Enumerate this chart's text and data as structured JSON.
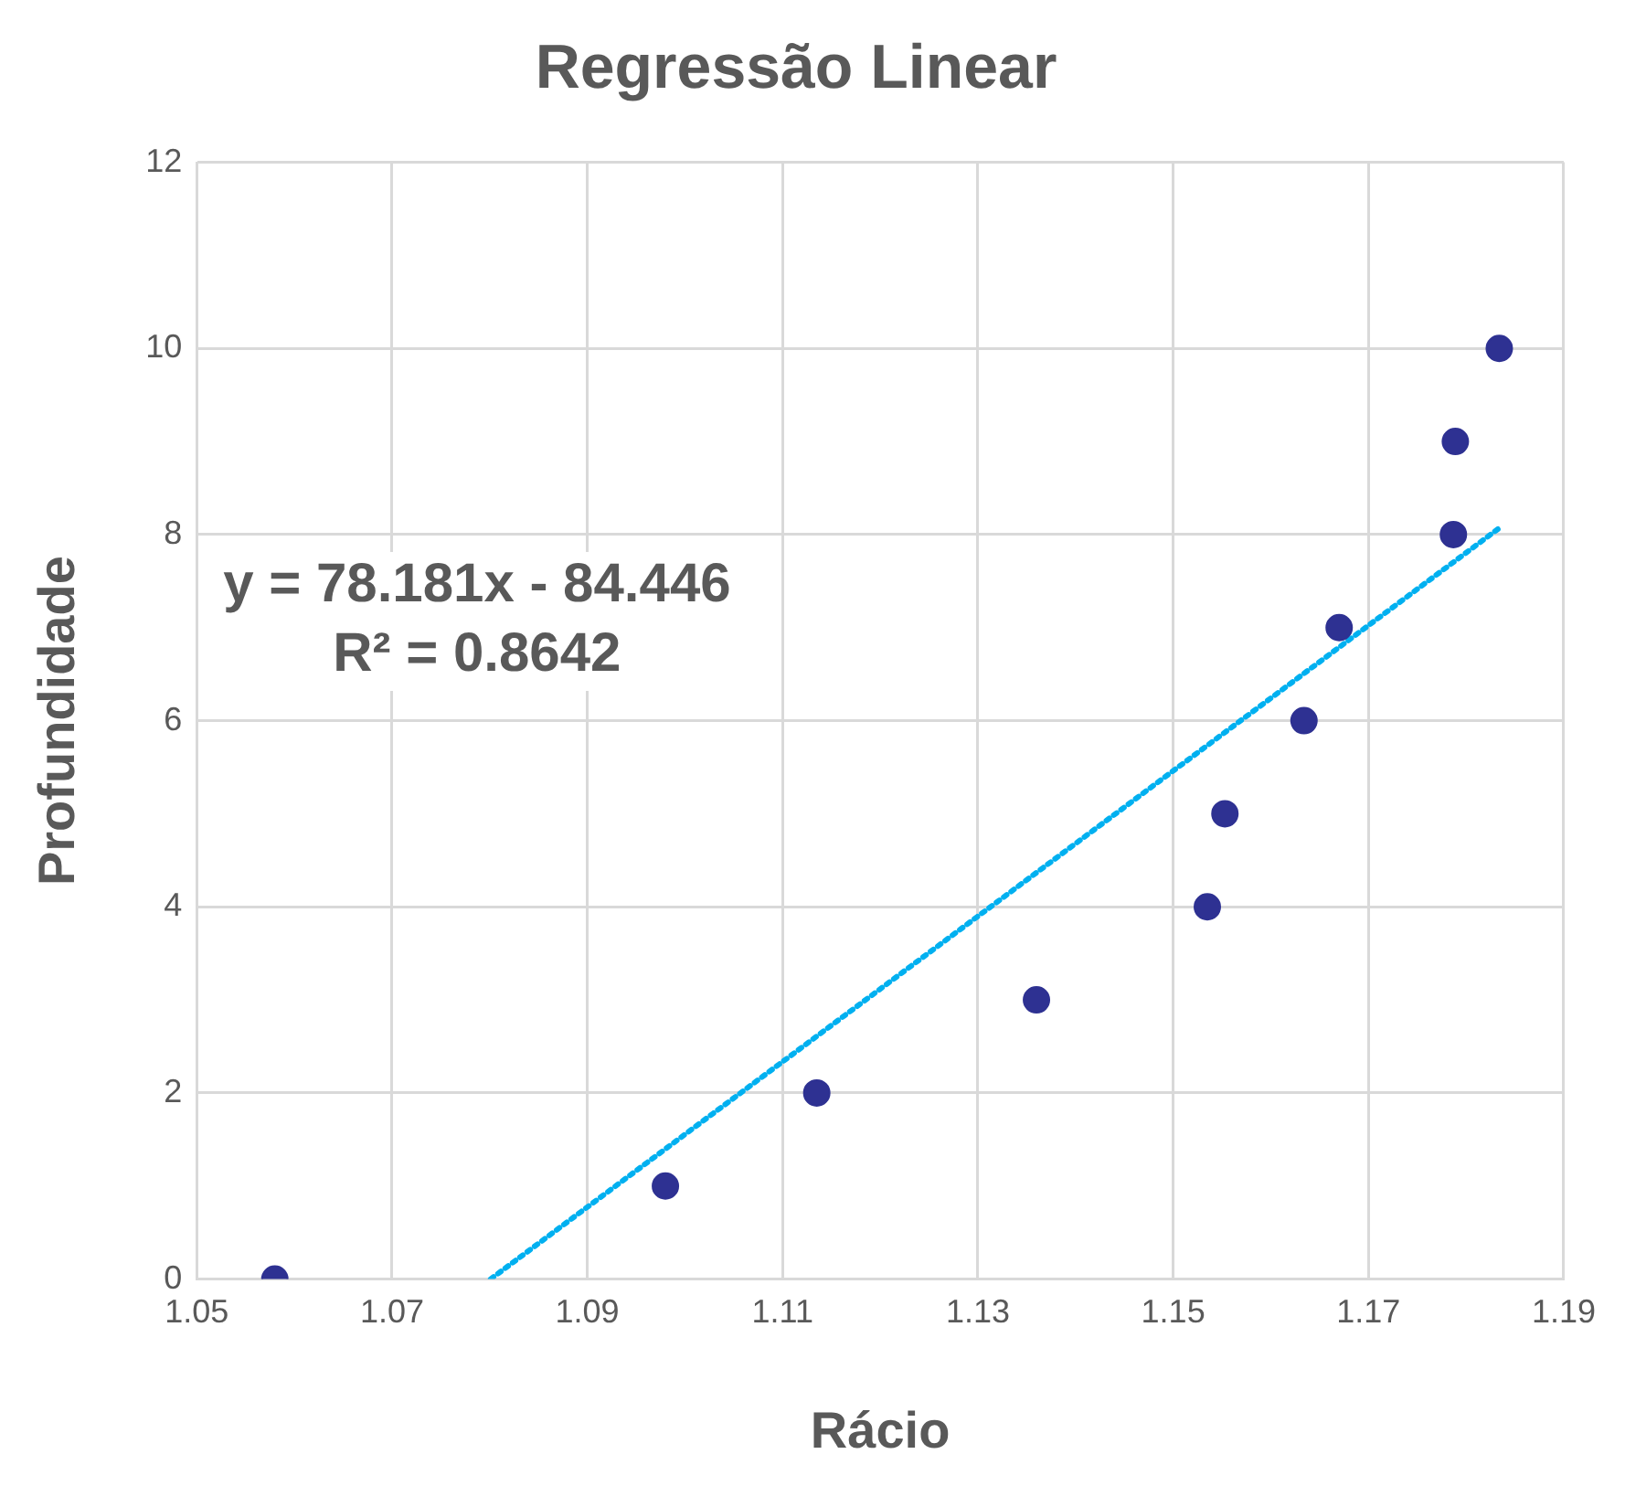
{
  "chart_data": {
    "type": "scatter",
    "title": "Regressão Linear",
    "xlabel": "Rácio",
    "ylabel": "Profundidade",
    "series": [
      {
        "type": "scatter",
        "color": "#2e3192",
        "x": [
          1.058,
          1.098,
          1.1135,
          1.136,
          1.1535,
          1.1553,
          1.1634,
          1.167,
          1.1787,
          1.1789,
          1.1834
        ],
        "values": [
          0,
          1,
          2,
          3,
          4,
          5,
          6,
          7,
          8,
          9,
          10
        ],
        "marker": "circle"
      },
      {
        "type": "line",
        "color": "#00b0f0",
        "x": [
          1.0801,
          1.1834
        ],
        "values": [
          0,
          8.07
        ],
        "line_style": "dotted",
        "marker": "none"
      }
    ],
    "xlim": [
      1.05,
      1.19
    ],
    "xticks": [
      1.05,
      1.07,
      1.09,
      1.11,
      1.13,
      1.15,
      1.17,
      1.19
    ],
    "ylim": [
      0,
      12
    ],
    "yticks": [
      0,
      2,
      4,
      6,
      8,
      10,
      12
    ],
    "grid": true,
    "legend": false,
    "annotations": [
      "y = 78.181x - 84.446",
      "R² = 0.8642"
    ]
  }
}
